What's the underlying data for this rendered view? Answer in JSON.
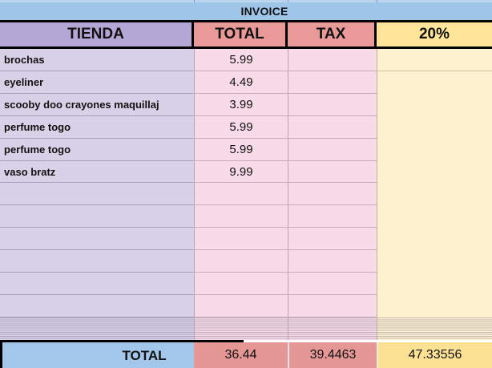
{
  "sheet": {
    "title": "INVOICE",
    "columns": [
      "TIENDA",
      "TOTAL",
      "TAX",
      "20%"
    ],
    "rows": [
      {
        "name": "brochas",
        "total": "5.99"
      },
      {
        "name": "eyeliner",
        "total": "4.49"
      },
      {
        "name": "scooby doo crayones maquillaj",
        "total": "3.99"
      },
      {
        "name": "perfume togo",
        "total": "5.99"
      },
      {
        "name": "perfume togo",
        "total": "5.99"
      },
      {
        "name": "vaso bratz",
        "total": "9.99"
      }
    ],
    "footer": {
      "label": "TOTAL",
      "total": "36.44",
      "tax": "39.4463",
      "pct": "47.33556"
    },
    "colors": {
      "invoice_blue": "#9fc5e8",
      "header_purple": "#b4a7d6",
      "header_red": "#ea9999",
      "header_yellow": "#ffe599",
      "cell_purple": "#d8d1e7",
      "cell_pink": "#f9dbe8",
      "cell_yellow": "#fdf1cf",
      "footer_blue": "#a3c7ea",
      "footer_red": "#e49795",
      "footer_yellow": "#fde193"
    }
  }
}
